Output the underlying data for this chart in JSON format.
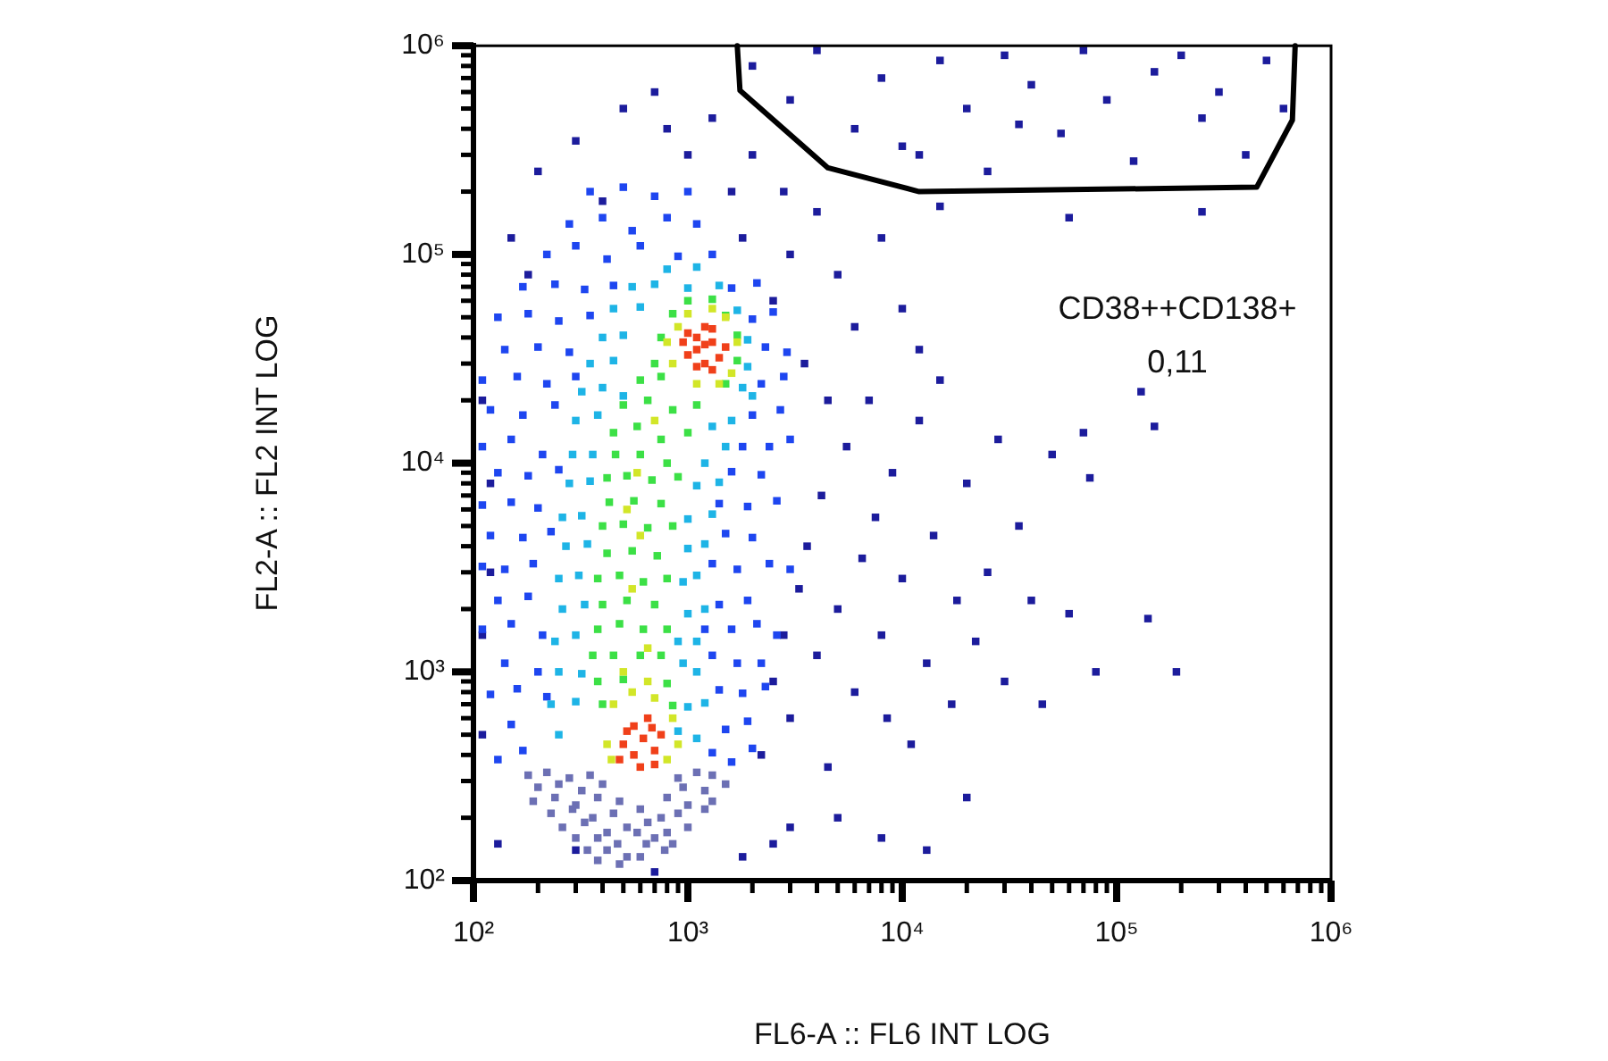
{
  "chart_data": {
    "type": "scatter",
    "xlabel": "FL6-A :: FL6 INT LOG",
    "ylabel": "FL2-A :: FL2 INT LOG",
    "log": "xy",
    "marker": "square",
    "xlim": [
      100,
      1000000
    ],
    "ylim": [
      100,
      1000000
    ],
    "xticks": [
      {
        "value": 100,
        "label": "10²"
      },
      {
        "value": 200,
        "label": null
      },
      {
        "value": 300,
        "label": null
      },
      {
        "value": 400,
        "label": null
      },
      {
        "value": 500,
        "label": null
      },
      {
        "value": 600,
        "label": null
      },
      {
        "value": 700,
        "label": null
      },
      {
        "value": 800,
        "label": null
      },
      {
        "value": 900,
        "label": null
      },
      {
        "value": 1000,
        "label": "10³"
      },
      {
        "value": 2000,
        "label": null
      },
      {
        "value": 3000,
        "label": null
      },
      {
        "value": 4000,
        "label": null
      },
      {
        "value": 5000,
        "label": null
      },
      {
        "value": 6000,
        "label": null
      },
      {
        "value": 7000,
        "label": null
      },
      {
        "value": 8000,
        "label": null
      },
      {
        "value": 9000,
        "label": null
      },
      {
        "value": 10000,
        "label": "10⁴"
      },
      {
        "value": 20000,
        "label": null
      },
      {
        "value": 30000,
        "label": null
      },
      {
        "value": 40000,
        "label": null
      },
      {
        "value": 50000,
        "label": null
      },
      {
        "value": 60000,
        "label": null
      },
      {
        "value": 70000,
        "label": null
      },
      {
        "value": 80000,
        "label": null
      },
      {
        "value": 90000,
        "label": null
      },
      {
        "value": 100000,
        "label": "10⁵"
      },
      {
        "value": 200000,
        "label": null
      },
      {
        "value": 300000,
        "label": null
      },
      {
        "value": 400000,
        "label": null
      },
      {
        "value": 500000,
        "label": null
      },
      {
        "value": 600000,
        "label": null
      },
      {
        "value": 700000,
        "label": null
      },
      {
        "value": 800000,
        "label": null
      },
      {
        "value": 900000,
        "label": null
      },
      {
        "value": 1000000,
        "label": "10⁶"
      }
    ],
    "yticks": [
      {
        "value": 100,
        "label": "10²"
      },
      {
        "value": 200,
        "label": null
      },
      {
        "value": 300,
        "label": null
      },
      {
        "value": 400,
        "label": null
      },
      {
        "value": 500,
        "label": null
      },
      {
        "value": 600,
        "label": null
      },
      {
        "value": 700,
        "label": null
      },
      {
        "value": 800,
        "label": null
      },
      {
        "value": 900,
        "label": null
      },
      {
        "value": 1000,
        "label": "10³"
      },
      {
        "value": 2000,
        "label": null
      },
      {
        "value": 3000,
        "label": null
      },
      {
        "value": 4000,
        "label": null
      },
      {
        "value": 5000,
        "label": null
      },
      {
        "value": 6000,
        "label": null
      },
      {
        "value": 7000,
        "label": null
      },
      {
        "value": 8000,
        "label": null
      },
      {
        "value": 9000,
        "label": null
      },
      {
        "value": 10000,
        "label": "10⁴"
      },
      {
        "value": 20000,
        "label": null
      },
      {
        "value": 30000,
        "label": null
      },
      {
        "value": 40000,
        "label": null
      },
      {
        "value": 50000,
        "label": null
      },
      {
        "value": 60000,
        "label": null
      },
      {
        "value": 70000,
        "label": null
      },
      {
        "value": 80000,
        "label": null
      },
      {
        "value": 90000,
        "label": null
      },
      {
        "value": 100000,
        "label": "10⁵"
      },
      {
        "value": 200000,
        "label": null
      },
      {
        "value": 300000,
        "label": null
      },
      {
        "value": 400000,
        "label": null
      },
      {
        "value": 500000,
        "label": null
      },
      {
        "value": 600000,
        "label": null
      },
      {
        "value": 700000,
        "label": null
      },
      {
        "value": 800000,
        "label": null
      },
      {
        "value": 900000,
        "label": null
      },
      {
        "value": 1000000,
        "label": "10⁶"
      }
    ],
    "annotations": [
      "CD38++CD138+",
      "0,11"
    ],
    "series": [
      {
        "color": "#1c1c9c",
        "x": [
          2200,
          2500,
          2800,
          3000,
          3300,
          3600,
          4000,
          4200,
          4500,
          5000,
          5500,
          6000,
          6500,
          7000,
          7500,
          8000,
          8500,
          9000,
          10000,
          11000,
          12000,
          13000,
          14000,
          15000,
          17000,
          18000,
          20000,
          22000,
          25000,
          28000,
          30000,
          35000,
          45000,
          50000,
          60000,
          75000,
          80000,
          130000,
          140000,
          150000,
          190000,
          70000,
          40000,
          2500,
          3000,
          3500,
          4000,
          5000,
          6000,
          8000,
          10000,
          12000,
          4500,
          2800,
          2000,
          2000,
          3000,
          4000,
          6000,
          8000,
          12000,
          15000,
          20000,
          25000,
          30000,
          40000,
          55000,
          70000,
          90000,
          120000,
          150000,
          200000,
          250000,
          300000,
          400000,
          500000,
          600000,
          35000,
          10000,
          250000,
          60000,
          15000,
          110,
          120,
          110,
          130,
          150,
          200,
          300,
          500,
          800,
          1000,
          1300,
          700,
          180,
          120,
          110,
          400,
          1600,
          1800,
          3000,
          2500,
          5000,
          8000,
          13000,
          20000,
          1800,
          700,
          300
        ],
        "values": [
          400,
          900,
          1500,
          600,
          2500,
          4000,
          1200,
          7000,
          350,
          2000,
          12000,
          800,
          3500,
          20000,
          5500,
          1500,
          600,
          9000,
          2800,
          450,
          16000,
          1100,
          4500,
          25000,
          700,
          2200,
          8000,
          1400,
          3000,
          13000,
          900,
          5000,
          700,
          11000,
          1900,
          8500,
          1000,
          22000,
          1800,
          15000,
          1000,
          14000,
          2200,
          60000,
          100000,
          30000,
          160000,
          80000,
          45000,
          120000,
          55000,
          35000,
          20000,
          200000,
          300000,
          800000,
          550000,
          950000,
          400000,
          700000,
          300000,
          850000,
          500000,
          250000,
          900000,
          650000,
          380000,
          950000,
          550000,
          280000,
          750000,
          900000,
          450000,
          600000,
          300000,
          850000,
          500000,
          420000,
          330000,
          160000,
          150000,
          170000,
          500,
          3000,
          20000,
          150,
          120000,
          250000,
          350000,
          500000,
          400000,
          300000,
          450000,
          600000,
          80000,
          8000,
          1500,
          180000,
          200000,
          120000,
          180,
          150,
          200,
          160,
          140,
          250,
          130,
          110,
          140
        ]
      },
      {
        "color": "#6c70b4",
        "x": [
          180,
          220,
          280,
          350,
          900,
          1100,
          1300,
          200,
          250,
          320,
          400,
          950,
          1200,
          1500,
          190,
          240,
          300,
          380,
          480,
          800,
          1000,
          1300,
          230,
          290,
          360,
          450,
          600,
          750,
          900,
          1200,
          260,
          330,
          420,
          520,
          650,
          800,
          1000,
          300,
          380,
          470,
          580,
          700,
          850,
          340,
          420,
          520,
          640,
          780,
          380,
          480,
          600
        ],
        "values": [
          320,
          330,
          310,
          320,
          310,
          330,
          320,
          280,
          290,
          270,
          290,
          280,
          270,
          290,
          240,
          250,
          230,
          250,
          240,
          250,
          230,
          240,
          210,
          220,
          200,
          210,
          220,
          200,
          210,
          220,
          180,
          190,
          170,
          180,
          190,
          170,
          180,
          160,
          160,
          150,
          170,
          160,
          150,
          140,
          140,
          130,
          150,
          140,
          125,
          120,
          130
        ]
      },
      {
        "color": "#1e46f0",
        "x": [
          130,
          170,
          1300,
          1600,
          2000,
          150,
          1500,
          1900,
          120,
          160,
          220,
          1400,
          1800,
          2300,
          140,
          200,
          1300,
          1700,
          2200,
          110,
          150,
          210,
          1200,
          1600,
          2100,
          2600,
          130,
          180,
          1400,
          1900,
          110,
          140,
          190,
          1300,
          1700,
          2400,
          3000,
          120,
          170,
          230,
          1500,
          2000,
          110,
          150,
          200,
          1400,
          1900,
          2600,
          130,
          180,
          250,
          1600,
          2200,
          110,
          150,
          210,
          1800,
          2400,
          3000,
          120,
          170,
          240,
          2000,
          2700,
          110,
          160,
          220,
          300,
          2200,
          2800,
          140,
          200,
          280,
          2300,
          2900,
          130,
          180,
          250,
          350,
          2000,
          2500,
          170,
          240,
          330,
          450,
          1600,
          2100,
          220,
          300,
          420,
          600,
          900,
          1300,
          280,
          400,
          550,
          800,
          1100,
          350,
          500,
          700,
          1000
        ],
        "values": [
          380,
          420,
          410,
          370,
          430,
          560,
          530,
          580,
          780,
          830,
          760,
          820,
          790,
          850,
          1100,
          1000,
          1200,
          1100,
          1100,
          1600,
          1700,
          1500,
          1600,
          1600,
          1700,
          1500,
          2200,
          2300,
          2100,
          2200,
          3200,
          3100,
          3300,
          3300,
          3100,
          3300,
          3100,
          4500,
          4400,
          4700,
          4600,
          4400,
          6300,
          6500,
          6100,
          6400,
          6200,
          6600,
          9000,
          8700,
          9300,
          9100,
          8800,
          12000,
          13000,
          11000,
          12000,
          12000,
          13000,
          18000,
          17000,
          19000,
          17000,
          18000,
          25000,
          26000,
          24000,
          26000,
          24000,
          26000,
          35000,
          36000,
          34000,
          36000,
          34000,
          50000,
          52000,
          48000,
          51000,
          49000,
          53000,
          70000,
          72000,
          68000,
          71000,
          69000,
          73000,
          100000,
          110000,
          95000,
          110000,
          98000,
          100000,
          140000,
          150000,
          130000,
          150000,
          140000,
          200000,
          210000,
          190000,
          200000
        ]
      },
      {
        "color": "#1eb4e6",
        "x": [
          250,
          900,
          1100,
          230,
          300,
          1000,
          1200,
          250,
          320,
          950,
          1100,
          240,
          300,
          900,
          1100,
          260,
          330,
          1000,
          1200,
          250,
          310,
          950,
          1100,
          270,
          340,
          1000,
          1200,
          260,
          320,
          1000,
          1300,
          280,
          350,
          1100,
          1400,
          290,
          360,
          1200,
          1500,
          300,
          380,
          1300,
          1600,
          320,
          400,
          500,
          1800,
          2000,
          350,
          450,
          1900,
          400,
          500,
          1900,
          450,
          600,
          1700,
          550,
          700,
          1000,
          1400,
          800,
          1100
        ],
        "values": [
          500,
          520,
          480,
          700,
          720,
          680,
          710,
          1000,
          980,
          1100,
          1000,
          1400,
          1500,
          1400,
          1400,
          2000,
          2100,
          1900,
          2000,
          2800,
          2900,
          2700,
          2900,
          4000,
          4100,
          3900,
          4100,
          5500,
          5600,
          5400,
          5700,
          8000,
          8200,
          7800,
          8100,
          11000,
          11000,
          10000,
          12000,
          16000,
          17000,
          15000,
          16000,
          22000,
          23000,
          21000,
          23000,
          21000,
          30000,
          31000,
          29000,
          40000,
          41000,
          39000,
          55000,
          56000,
          54000,
          70000,
          72000,
          69000,
          71000,
          85000,
          87000
        ]
      },
      {
        "color": "#3ce046",
        "x": [
          400,
          850,
          380,
          500,
          800,
          360,
          450,
          600,
          750,
          380,
          480,
          620,
          800,
          400,
          520,
          700,
          380,
          480,
          620,
          800,
          420,
          550,
          720,
          400,
          500,
          650,
          850,
          430,
          560,
          750,
          420,
          520,
          680,
          900,
          460,
          600,
          800,
          450,
          580,
          750,
          1000,
          500,
          650,
          850,
          1100,
          600,
          750,
          1500,
          700,
          1700,
          750,
          1700,
          850,
          1500,
          1000,
          1300
        ],
        "values": [
          700,
          690,
          900,
          920,
          880,
          1200,
          1200,
          1200,
          1200,
          1600,
          1700,
          1600,
          1600,
          2100,
          2200,
          2100,
          2800,
          2900,
          2700,
          2800,
          3700,
          3800,
          3600,
          5000,
          5100,
          4900,
          5000,
          6500,
          6600,
          6400,
          8500,
          8700,
          8300,
          8600,
          11000,
          11000,
          10000,
          14000,
          15000,
          13000,
          14000,
          19000,
          20000,
          18000,
          19000,
          25000,
          26000,
          24000,
          30000,
          31000,
          40000,
          41000,
          52000,
          51000,
          60000,
          61000
        ]
      },
      {
        "color": "#d2e628",
        "x": [
          850,
          900,
          1000,
          1500,
          1700,
          1600,
          1100,
          800,
          1300,
          1400,
          450,
          550,
          700,
          850,
          900,
          420,
          440,
          800,
          650,
          500,
          550,
          600,
          650,
          580,
          700,
          520
        ],
        "values": [
          30000,
          45000,
          52000,
          50000,
          38000,
          27000,
          24000,
          38000,
          55000,
          24000,
          700,
          800,
          750,
          600,
          450,
          450,
          380,
          380,
          900,
          1000,
          2500,
          4500,
          1300,
          9000,
          16000,
          6000
        ]
      },
      {
        "color": "#f0401a",
        "x": [
          1000,
          1100,
          1200,
          1300,
          1400,
          1200,
          1100,
          1000,
          1300,
          1200,
          950,
          1300,
          1100,
          1500,
          500,
          560,
          620,
          700,
          560,
          650,
          750,
          480,
          600,
          700,
          520,
          680
        ],
        "values": [
          33000,
          40000,
          45000,
          38000,
          32000,
          30000,
          35000,
          42000,
          44000,
          37000,
          38000,
          28000,
          29000,
          36000,
          450,
          400,
          480,
          420,
          550,
          600,
          500,
          380,
          350,
          360,
          520,
          540
        ]
      },
      {
        "type": "line",
        "color": "#000000",
        "marker": "none",
        "line_style": "solid",
        "x": [
          1700,
          1750,
          4500,
          12000,
          450000,
          660000,
          680000
        ],
        "values": [
          1000000,
          610000,
          260000,
          200000,
          210000,
          440000,
          1000000
        ]
      }
    ]
  }
}
